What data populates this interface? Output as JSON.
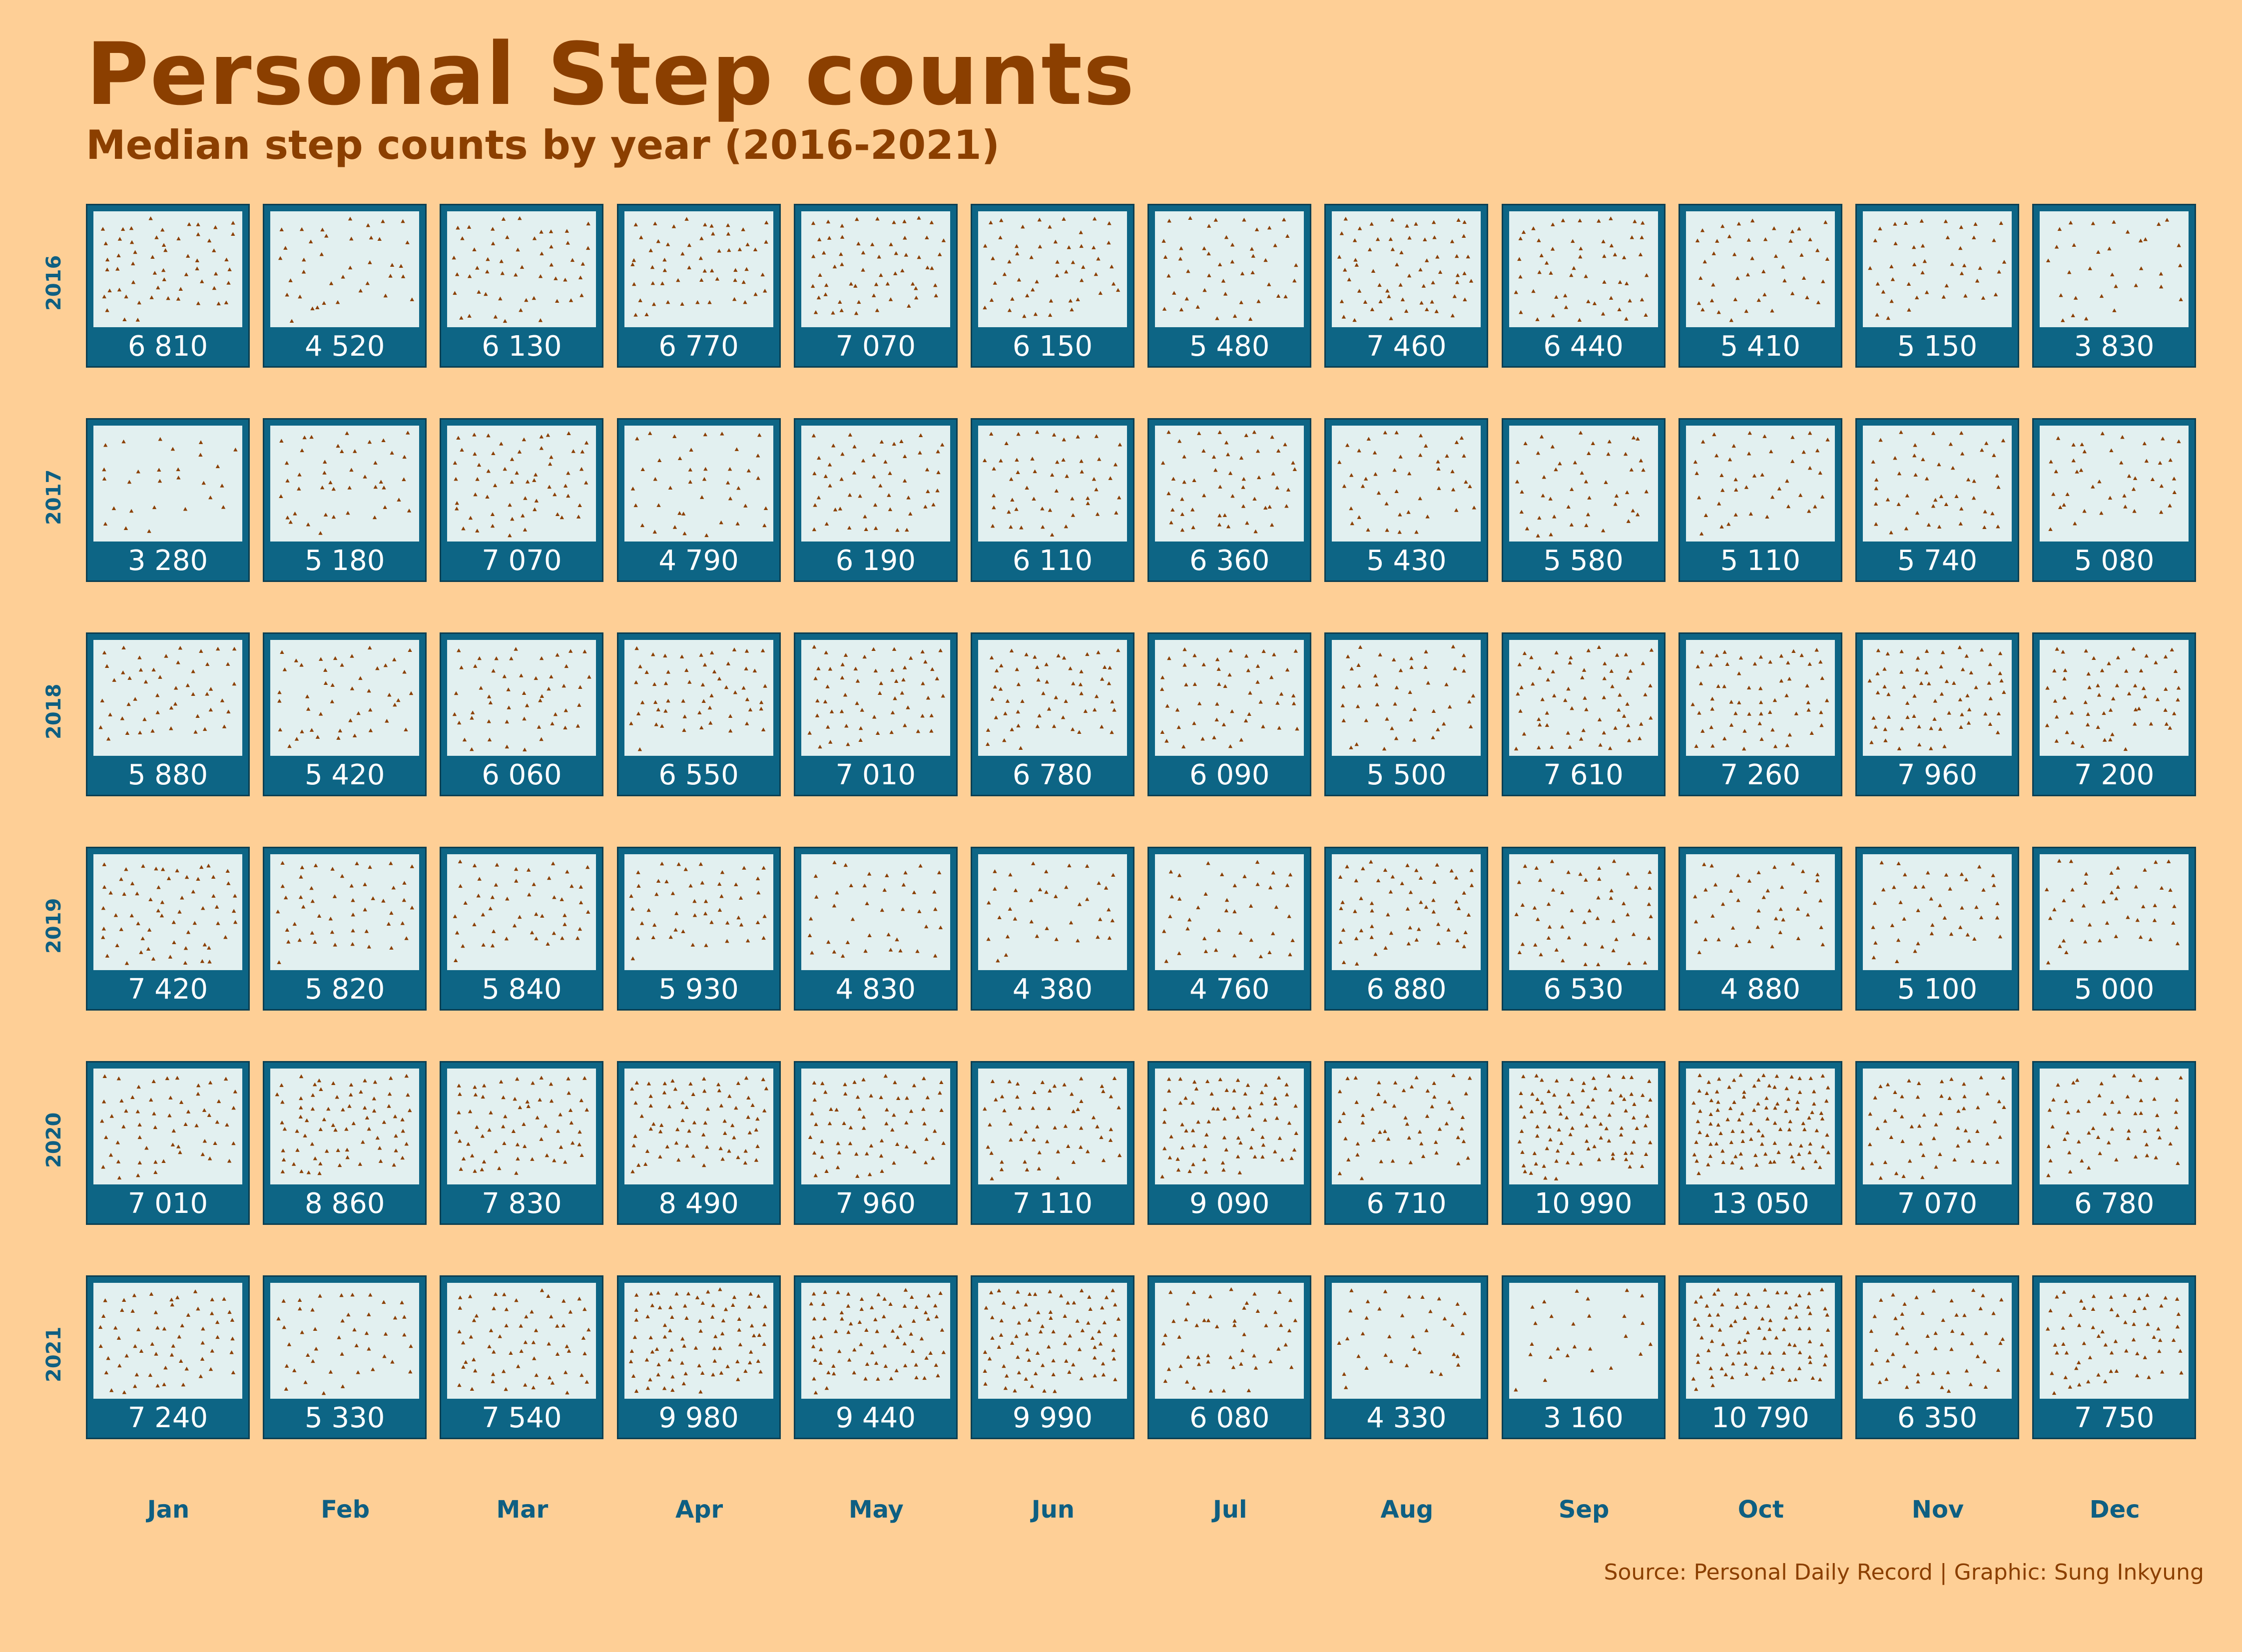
{
  "title": "Personal Step counts",
  "subtitle": "Median step counts by year (2016-2021)",
  "caption": "Source: Personal Daily Record | Graphic: Sung Inkyung",
  "colors": {
    "background": "#FECF96",
    "title": "#8B3F00",
    "tile_frame": "#0D6585",
    "tile_fill": "#E2F0F0",
    "marker": "#8B3F00",
    "axis_label": "#0E5F82"
  },
  "chart_data": {
    "type": "heatmap",
    "marker_icon": "triangle-step-icon",
    "x_label": "",
    "y_label": "",
    "months": [
      "Jan",
      "Feb",
      "Mar",
      "Apr",
      "May",
      "Jun",
      "Jul",
      "Aug",
      "Sep",
      "Oct",
      "Nov",
      "Dec"
    ],
    "years": [
      "2016",
      "2017",
      "2018",
      "2019",
      "2020",
      "2021"
    ],
    "values": [
      [
        "6 810",
        "4 520",
        "6 130",
        "6 770",
        "7 070",
        "6 150",
        "5 480",
        "7 460",
        "6 440",
        "5 410",
        "5 150",
        "3 830"
      ],
      [
        "3 280",
        "5 180",
        "7 070",
        "4 790",
        "6 190",
        "6 110",
        "6 360",
        "5 430",
        "5 580",
        "5 110",
        "5 740",
        "5 080"
      ],
      [
        "5 880",
        "5 420",
        "6 060",
        "6 550",
        "7 010",
        "6 780",
        "6 090",
        "5 500",
        "7 610",
        "7 260",
        "7 960",
        "7 200"
      ],
      [
        "7 420",
        "5 820",
        "5 840",
        "5 930",
        "4 830",
        "4 380",
        "4 760",
        "6 880",
        "6 530",
        "4 880",
        "5 100",
        "5 000"
      ],
      [
        "7 010",
        "8 860",
        "7 830",
        "8 490",
        "7 960",
        "7 110",
        "9 090",
        "6 710",
        "10 990",
        "13 050",
        "7 070",
        "6 780"
      ],
      [
        "7 240",
        "5 330",
        "7 540",
        "9 980",
        "9 440",
        "9 990",
        "6 080",
        "4 330",
        "3 160",
        "10 790",
        "6 350",
        "7 750"
      ]
    ]
  }
}
